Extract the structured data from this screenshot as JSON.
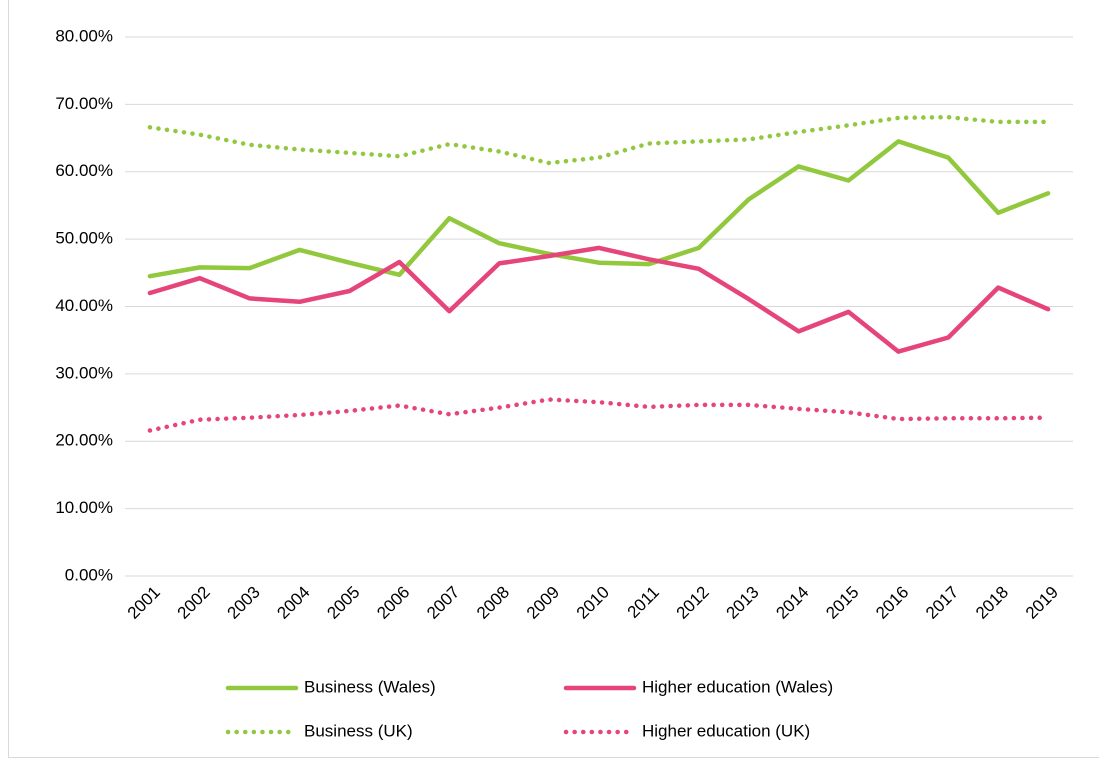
{
  "chart_data": {
    "type": "line",
    "categories": [
      "2001",
      "2002",
      "2003",
      "2004",
      "2005",
      "2006",
      "2007",
      "2008",
      "2009",
      "2010",
      "2011",
      "2012",
      "2013",
      "2014",
      "2015",
      "2016",
      "2017",
      "2018",
      "2019"
    ],
    "series": [
      {
        "name": "Business (Wales)",
        "color": "#92c83e",
        "line_style": "solid",
        "values": [
          44.5,
          45.8,
          45.7,
          48.4,
          46.5,
          44.7,
          53.1,
          49.4,
          47.8,
          46.5,
          46.3,
          48.7,
          55.9,
          60.8,
          58.7,
          64.5,
          62.1,
          53.9,
          56.8
        ]
      },
      {
        "name": "Higher education (Wales)",
        "color": "#e6457a",
        "line_style": "solid",
        "values": [
          42.0,
          44.2,
          41.2,
          40.7,
          42.3,
          46.6,
          39.3,
          46.4,
          47.5,
          48.7,
          47.0,
          45.6,
          41.1,
          36.3,
          39.2,
          33.3,
          35.4,
          42.8,
          39.6
        ]
      },
      {
        "name": "Business (UK)",
        "color": "#92c83e",
        "line_style": "dotted",
        "values": [
          66.6,
          65.5,
          64.0,
          63.3,
          62.8,
          62.3,
          64.1,
          63.0,
          61.3,
          62.1,
          64.2,
          64.5,
          64.8,
          65.9,
          66.9,
          68.0,
          68.1,
          67.4,
          67.4
        ]
      },
      {
        "name": "Higher education (UK)",
        "color": "#e6457a",
        "line_style": "dotted",
        "values": [
          21.6,
          23.2,
          23.5,
          23.9,
          24.5,
          25.3,
          24.0,
          25.0,
          26.2,
          25.8,
          25.1,
          25.4,
          25.4,
          24.8,
          24.3,
          23.3,
          23.4,
          23.4,
          23.5
        ]
      }
    ],
    "ylim": [
      0,
      80
    ],
    "yticks": [
      {
        "value": 0,
        "label": "0.00%"
      },
      {
        "value": 10,
        "label": "10.00%"
      },
      {
        "value": 20,
        "label": "20.00%"
      },
      {
        "value": 30,
        "label": "30.00%"
      },
      {
        "value": 40,
        "label": "40.00%"
      },
      {
        "value": 50,
        "label": "50.00%"
      },
      {
        "value": 60,
        "label": "60.00%"
      },
      {
        "value": 70,
        "label": "70.00%"
      },
      {
        "value": 80,
        "label": "80.00%"
      }
    ],
    "grid": true,
    "legend": "bottom"
  }
}
